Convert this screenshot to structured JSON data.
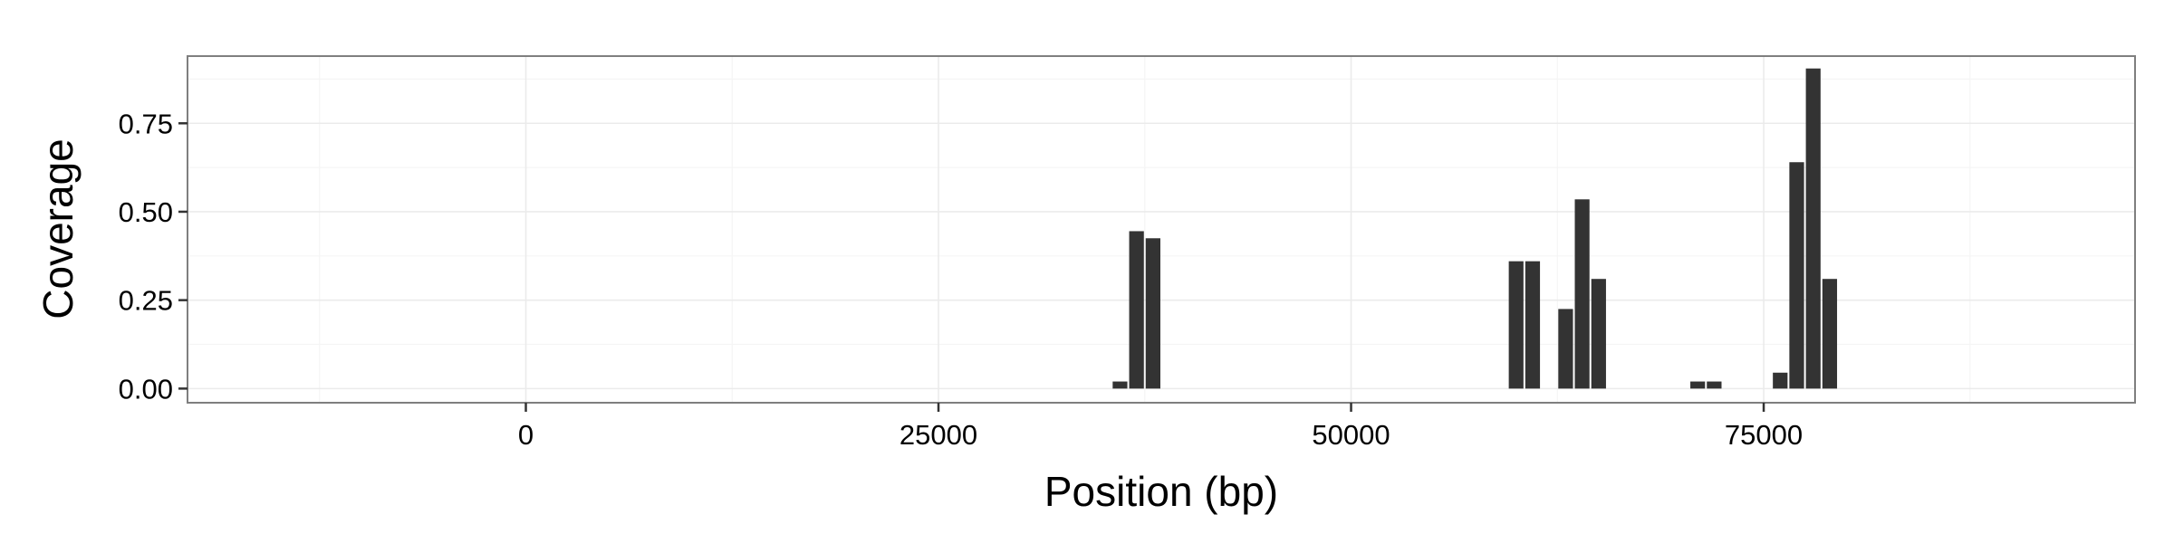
{
  "chart_data": {
    "type": "bar",
    "title": "",
    "xlabel": "Position (bp)",
    "ylabel": "Coverage",
    "xlim": [
      -20500,
      97500
    ],
    "ylim": [
      -0.04,
      0.94
    ],
    "x_ticks": [
      0,
      25000,
      50000,
      75000
    ],
    "x_tick_labels": [
      "0",
      "25000",
      "50000",
      "75000"
    ],
    "y_ticks": [
      0,
      0.25,
      0.5,
      0.75
    ],
    "y_tick_labels": [
      "0.00",
      "0.25",
      "0.50",
      "0.75"
    ],
    "bin_width": 1000,
    "grid": true,
    "legend": "none",
    "bar_color": "#333333",
    "panel_background": "#ffffff",
    "grid_major_color": "#ebebeb",
    "grid_minor_color": "#f5f5f5",
    "panel_border_color": "#7f7f7f",
    "series": [
      {
        "x": [
          36000,
          37000,
          38000,
          60000,
          61000,
          63000,
          64000,
          65000,
          71000,
          72000,
          76000,
          77000,
          78000,
          79000
        ],
        "values": [
          0.02,
          0.445,
          0.425,
          0.36,
          0.36,
          0.225,
          0.535,
          0.31,
          0.02,
          0.02,
          0.045,
          0.64,
          0.905,
          0.31
        ]
      }
    ]
  }
}
